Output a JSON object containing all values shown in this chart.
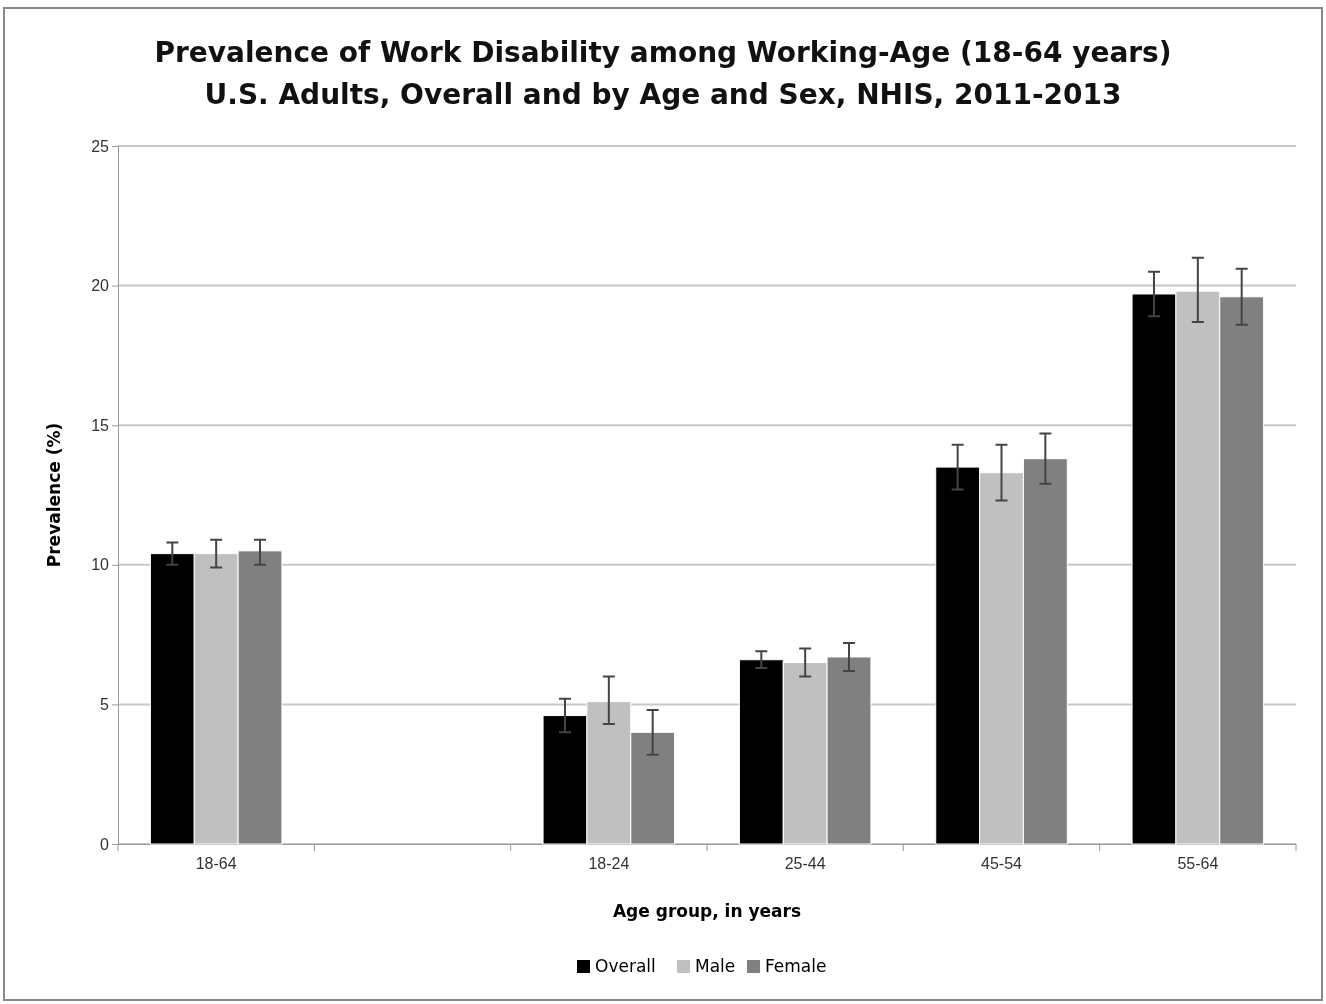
{
  "chart_data": {
    "type": "bar",
    "title": "Prevalence of Work Disability among Working-Age (18-64 years)\nU.S. Adults, Overall and by Age and Sex, NHIS, 2011-2013",
    "xlabel": "Age group, in years",
    "ylabel": "Prevalence (%)",
    "categories": [
      "18-64",
      null,
      "18-24",
      "25-44",
      "45-54",
      "55-64"
    ],
    "series": [
      {
        "name": "Overall",
        "color": "#000000",
        "values": [
          10.4,
          null,
          4.6,
          6.6,
          13.5,
          19.7
        ],
        "errors": [
          [
            10.0,
            10.8
          ],
          null,
          [
            4.0,
            5.2
          ],
          [
            6.3,
            6.9
          ],
          [
            12.7,
            14.3
          ],
          [
            18.9,
            20.5
          ]
        ]
      },
      {
        "name": "Male",
        "color": "#c0c0c0",
        "values": [
          10.4,
          null,
          5.1,
          6.5,
          13.3,
          19.8
        ],
        "errors": [
          [
            9.9,
            10.9
          ],
          null,
          [
            4.3,
            6.0
          ],
          [
            6.0,
            7.0
          ],
          [
            12.3,
            14.3
          ],
          [
            18.7,
            21.0
          ]
        ]
      },
      {
        "name": "Female",
        "color": "#808080",
        "values": [
          10.5,
          null,
          4.0,
          6.7,
          13.8,
          19.6
        ],
        "errors": [
          [
            10.0,
            10.9
          ],
          null,
          [
            3.2,
            4.8
          ],
          [
            6.2,
            7.2
          ],
          [
            12.9,
            14.7
          ],
          [
            18.6,
            20.6
          ]
        ]
      }
    ],
    "ylim": [
      0,
      25
    ],
    "yticks": [
      0,
      5,
      10,
      15,
      20,
      25
    ],
    "grid": "y",
    "legend": "bottom"
  }
}
